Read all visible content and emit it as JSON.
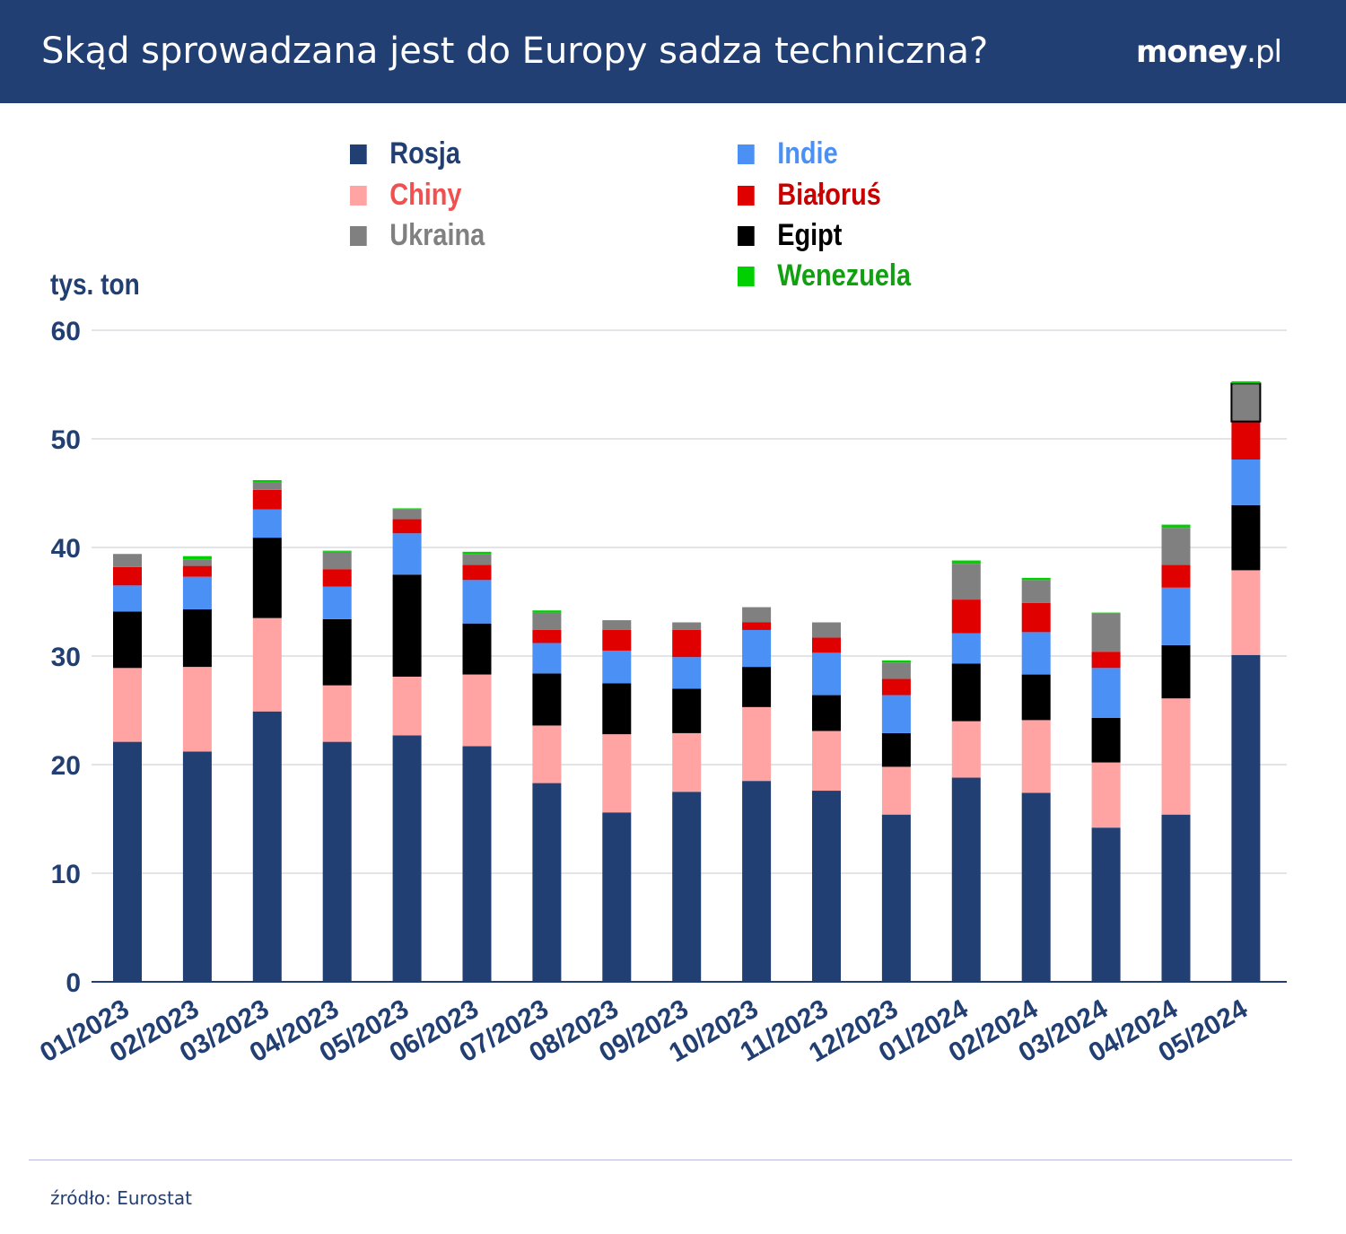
{
  "header": {
    "title": "Skąd sprowadzana jest do Europy sadza techniczna?",
    "logo_main": "money",
    "logo_suffix": ".pl"
  },
  "footer": {
    "source": "źródło: Eurostat"
  },
  "chart_data": {
    "type": "bar",
    "stacked": true,
    "title": "Skąd sprowadzana jest do Europy sadza techniczna?",
    "ylabel": "tys. ton",
    "xlabel": "",
    "ylim": [
      0,
      60
    ],
    "yticks": [
      0,
      10,
      20,
      30,
      40,
      50,
      60
    ],
    "grid": true,
    "legend_position": "top",
    "categories": [
      "01/2023",
      "02/2023",
      "03/2023",
      "04/2023",
      "05/2023",
      "06/2023",
      "07/2023",
      "08/2023",
      "09/2023",
      "10/2023",
      "11/2023",
      "12/2023",
      "01/2024",
      "02/2024",
      "03/2024",
      "04/2024",
      "05/2024"
    ],
    "series": [
      {
        "name": "Rosja",
        "color": "#223f73",
        "values": [
          22.1,
          21.2,
          24.9,
          22.1,
          22.7,
          21.7,
          18.3,
          15.6,
          17.5,
          18.5,
          17.6,
          15.4,
          18.8,
          17.4,
          14.2,
          15.4,
          30.1
        ]
      },
      {
        "name": "Chiny",
        "color": "#ffa3a3",
        "values": [
          6.8,
          7.8,
          8.6,
          5.2,
          5.4,
          6.6,
          5.3,
          7.2,
          5.4,
          6.8,
          5.5,
          4.4,
          5.2,
          6.7,
          6.0,
          10.7,
          7.8
        ]
      },
      {
        "name": "Egipt",
        "color": "#000000",
        "values": [
          5.2,
          5.3,
          7.4,
          6.1,
          9.4,
          4.7,
          4.8,
          4.7,
          4.1,
          3.7,
          3.3,
          3.1,
          5.3,
          4.2,
          4.1,
          4.9,
          6.0
        ]
      },
      {
        "name": "Indie",
        "color": "#4a90f5",
        "values": [
          2.4,
          3.0,
          2.6,
          3.0,
          3.8,
          4.0,
          2.8,
          3.0,
          2.9,
          3.4,
          3.9,
          3.5,
          2.8,
          3.9,
          4.6,
          5.3,
          4.2
        ]
      },
      {
        "name": "Białoruś",
        "color": "#e00000",
        "values": [
          1.7,
          1.0,
          1.8,
          1.6,
          1.3,
          1.4,
          1.2,
          1.9,
          2.5,
          0.7,
          1.4,
          1.5,
          3.1,
          2.7,
          1.5,
          2.1,
          3.5
        ]
      },
      {
        "name": "Ukraina",
        "color": "#808080",
        "values": [
          1.2,
          0.6,
          0.7,
          1.6,
          0.9,
          1.0,
          1.6,
          0.9,
          0.7,
          1.4,
          1.4,
          1.5,
          3.3,
          2.1,
          3.5,
          3.4,
          3.5
        ]
      },
      {
        "name": "Wenezuela",
        "color": "#00d000",
        "values": [
          0,
          0.3,
          0.2,
          0.1,
          0.1,
          0.2,
          0.2,
          0,
          0,
          0,
          0,
          0.2,
          0.3,
          0.2,
          0.1,
          0.3,
          0.2
        ]
      }
    ],
    "legend_order": [
      "Rosja",
      "Chiny",
      "Ukraina",
      "Indie",
      "Białoruś",
      "Egipt",
      "Wenezuela"
    ]
  }
}
